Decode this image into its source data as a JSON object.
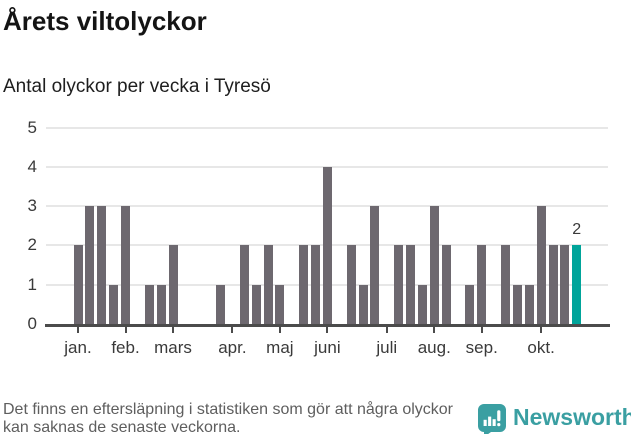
{
  "header": {
    "title": "Årets viltolyckor",
    "subtitle": "Antal olyckor per vecka i Tyresö"
  },
  "chart_data": {
    "type": "bar",
    "title": "Årets viltolyckor",
    "subtitle": "Antal olyckor per vecka i Tyresö",
    "x_unit": "vecka",
    "values": [
      2,
      3,
      3,
      1,
      3,
      0,
      1,
      1,
      2,
      0,
      0,
      0,
      1,
      0,
      2,
      1,
      2,
      1,
      0,
      2,
      2,
      4,
      0,
      2,
      1,
      3,
      0,
      2,
      2,
      1,
      3,
      2,
      0,
      1,
      2,
      0,
      2,
      1,
      1,
      3,
      2,
      2,
      2
    ],
    "month_ticks": [
      {
        "label": "jan.",
        "week_index": 0
      },
      {
        "label": "feb.",
        "week_index": 4
      },
      {
        "label": "mars",
        "week_index": 8
      },
      {
        "label": "apr.",
        "week_index": 13
      },
      {
        "label": "maj",
        "week_index": 17
      },
      {
        "label": "juni",
        "week_index": 21
      },
      {
        "label": "juli",
        "week_index": 26
      },
      {
        "label": "aug.",
        "week_index": 30
      },
      {
        "label": "sep.",
        "week_index": 34
      },
      {
        "label": "okt.",
        "week_index": 39
      }
    ],
    "y_ticks": [
      0,
      1,
      2,
      3,
      4,
      5
    ],
    "ylim": [
      0,
      5
    ],
    "grid": true,
    "legend": "none",
    "bar_color": "#6d686f",
    "highlight_color": "#00a49a",
    "highlight_last": true,
    "last_value_label": "2"
  },
  "footer": {
    "note": "Det finns en eftersläpning i statistiken som gör att några olyckor kan saknas de senaste veckorna.",
    "brand": {
      "name": "Newsworthy",
      "color": "#3a9fa2",
      "icon": "newsworthy-chart-bubble-icon"
    }
  }
}
